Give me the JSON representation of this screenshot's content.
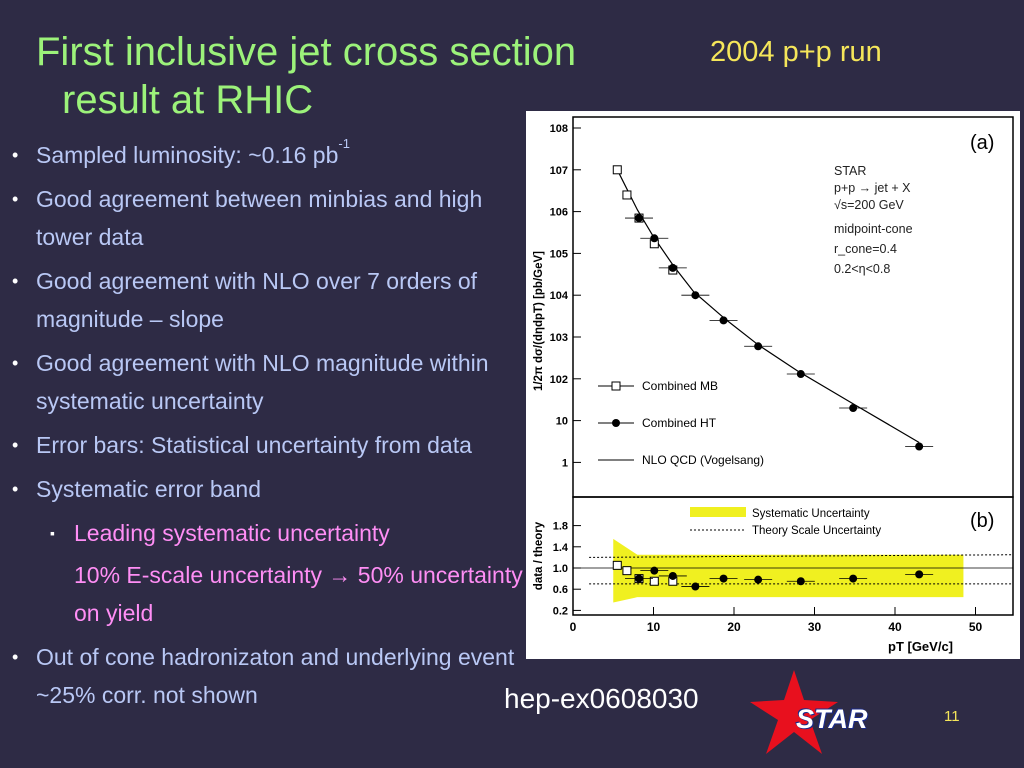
{
  "slide": {
    "title_line1": "First inclusive jet cross section",
    "title_line2": "result at RHIC",
    "run_label": "2004 p+p run",
    "reference": "hep-ex0608030",
    "logo_text": "STAR",
    "page_number": "11"
  },
  "bullets": [
    {
      "text": "Sampled luminosity: ~0.16 pb",
      "sup": "-1"
    },
    {
      "text": "Good agreement between minbias and  high tower data"
    },
    {
      "text": "Good agreement with NLO over 7 orders of magnitude – slope"
    },
    {
      "text": "Good agreement with NLO magnitude within systematic uncertainty"
    },
    {
      "text": "Error bars: Statistical uncertainty from data"
    },
    {
      "text": "Systematic error band"
    },
    {
      "sub": "Leading systematic uncertainty"
    },
    {
      "subtext": "10% E-scale uncertainty → 50% uncertainty on yield"
    },
    {
      "text": "Out of cone hadronizaton and underlying event ~25% corr. not shown"
    }
  ],
  "figure": {
    "panel_a_label": "(a)",
    "panel_b_label": "(b)",
    "info_lines": [
      "STAR",
      "p+p → jet + X",
      "√s=200  GeV",
      "midpoint-cone",
      "r_cone=0.4",
      "0.2<η<0.8"
    ],
    "legend_a": [
      "Combined MB",
      "Combined HT",
      "NLO QCD (Vogelsang)"
    ],
    "legend_b": [
      "Systematic Uncertainty",
      "Theory Scale Uncertainty"
    ],
    "ylabel_a": "1/2π dσ/(dηdpT) [pb/GeV]",
    "ylabel_b": "data / theory",
    "xlabel": "pT   [GeV/c]",
    "yticks_a": [
      "10^8",
      "10^7",
      "10^6",
      "10^5",
      "10^4",
      "10^3",
      "10^2",
      "10",
      "1"
    ],
    "yticks_b": [
      "1.8",
      "1.4",
      "1.0",
      "0.6",
      "0.2"
    ],
    "xticks": [
      "0",
      "10",
      "20",
      "30",
      "40",
      "50"
    ]
  },
  "chart_data": [
    {
      "type": "scatter",
      "title": "",
      "xlabel": "pT [GeV/c]",
      "ylabel": "1/2π dσ/(dηdpT) [pb/GeV]",
      "yscale": "log",
      "xlim": [
        0,
        52
      ],
      "ylim": [
        0.5,
        100000000
      ],
      "series": [
        {
          "name": "Combined MB",
          "marker": "open-square",
          "x": [
            5.5,
            6.7,
            8.2,
            10.1,
            12.4
          ],
          "y": [
            10000000,
            2500000,
            700000,
            170000,
            40000
          ]
        },
        {
          "name": "Combined HT",
          "marker": "filled-circle",
          "x": [
            8.2,
            10.1,
            12.4,
            15.2,
            18.7,
            23.0,
            28.3,
            34.8,
            43.0
          ],
          "y": [
            700000,
            230000,
            45000,
            10000,
            2500,
            600,
            130,
            20,
            2.4
          ]
        },
        {
          "name": "NLO QCD (Vogelsang)",
          "style": "line",
          "x": [
            5.5,
            8,
            10,
            12.5,
            15,
            19,
            23,
            28,
            35,
            43
          ],
          "y": [
            10000000,
            1100000,
            250000,
            50000,
            12000,
            2600,
            650,
            150,
            24,
            3
          ]
        }
      ]
    },
    {
      "type": "scatter",
      "title": "",
      "xlabel": "pT [GeV/c]",
      "ylabel": "data / theory",
      "xlim": [
        0,
        52
      ],
      "ylim": [
        0,
        2
      ],
      "series": [
        {
          "name": "Combined MB",
          "marker": "open-square",
          "x": [
            5.5,
            6.7,
            8.2,
            10.1,
            12.4
          ],
          "y": [
            1.05,
            0.95,
            0.8,
            0.75,
            0.75
          ]
        },
        {
          "name": "Combined HT",
          "marker": "filled-circle",
          "x": [
            8.2,
            10.1,
            12.4,
            15.2,
            18.7,
            23.0,
            28.3,
            34.8,
            43.0
          ],
          "y": [
            0.8,
            0.95,
            0.85,
            0.65,
            0.8,
            0.78,
            0.75,
            0.8,
            0.88
          ]
        }
      ],
      "bands": {
        "Systematic Uncertainty": {
          "x": [
            5,
            48.5
          ],
          "low": 0.45,
          "high": 1.25
        },
        "Theory Scale Uncertainty": {
          "low": 0.7,
          "high": 1.2
        }
      }
    }
  ],
  "colors": {
    "background": "#2e2b45",
    "title": "#9cf27a",
    "bullet": "#b9c8f5",
    "sub": "#ff8ef5",
    "run": "#f5e65a",
    "band": "#f0f020",
    "star": "#e8101e"
  }
}
